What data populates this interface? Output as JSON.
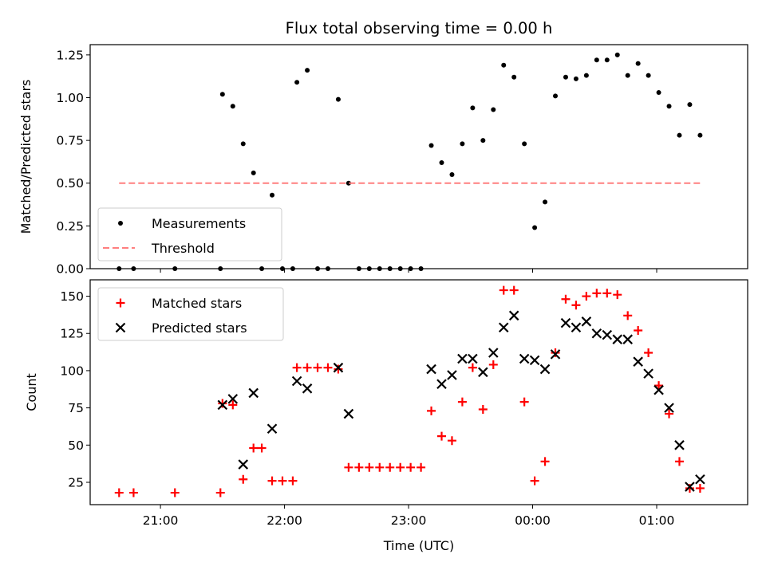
{
  "chart_data": [
    {
      "type": "scatter",
      "title": "Flux total observing time = 0.00 h",
      "ylabel": "Matched/Predicted stars",
      "xlabel": "",
      "xlim": [
        "20:26",
        "01:44"
      ],
      "ylim": [
        0,
        1.31
      ],
      "yticks": [
        0,
        0.25,
        0.5,
        0.75,
        1.0,
        1.25
      ],
      "ytick_labels": [
        "0.00",
        "0.25",
        "0.50",
        "0.75",
        "1.00",
        "1.25"
      ],
      "xticks": [
        "21:00",
        "22:00",
        "23:00",
        "00:00",
        "01:00"
      ],
      "legend": "lower-left",
      "series": [
        {
          "name": "Measurements",
          "marker": "dot",
          "color": "#000000",
          "points": [
            [
              "20:40",
              0.0
            ],
            [
              "20:47",
              0.0
            ],
            [
              "21:07",
              0.0
            ],
            [
              "21:29",
              0.0
            ],
            [
              "21:30",
              1.02
            ],
            [
              "21:35",
              0.95
            ],
            [
              "21:40",
              0.73
            ],
            [
              "21:45",
              0.56
            ],
            [
              "21:49",
              0.0
            ],
            [
              "21:54",
              0.43
            ],
            [
              "21:59",
              0.0
            ],
            [
              "22:04",
              0.0
            ],
            [
              "22:06",
              1.09
            ],
            [
              "22:11",
              1.16
            ],
            [
              "22:16",
              0.0
            ],
            [
              "22:21",
              0.0
            ],
            [
              "22:26",
              0.99
            ],
            [
              "22:31",
              0.5
            ],
            [
              "22:36",
              0.0
            ],
            [
              "22:41",
              0.0
            ],
            [
              "22:46",
              0.0
            ],
            [
              "22:51",
              0.0
            ],
            [
              "22:56",
              0.0
            ],
            [
              "23:01",
              0.0
            ],
            [
              "23:06",
              0.0
            ],
            [
              "23:11",
              0.72
            ],
            [
              "23:16",
              0.62
            ],
            [
              "23:21",
              0.55
            ],
            [
              "23:26",
              0.73
            ],
            [
              "23:31",
              0.94
            ],
            [
              "23:36",
              0.75
            ],
            [
              "23:41",
              0.93
            ],
            [
              "23:46",
              1.19
            ],
            [
              "23:51",
              1.12
            ],
            [
              "23:56",
              0.73
            ],
            [
              "00:01",
              0.24
            ],
            [
              "00:06",
              0.39
            ],
            [
              "00:11",
              1.01
            ],
            [
              "00:16",
              1.12
            ],
            [
              "00:21",
              1.11
            ],
            [
              "00:26",
              1.13
            ],
            [
              "00:31",
              1.22
            ],
            [
              "00:36",
              1.22
            ],
            [
              "00:41",
              1.25
            ],
            [
              "00:46",
              1.13
            ],
            [
              "00:51",
              1.2
            ],
            [
              "00:56",
              1.13
            ],
            [
              "01:01",
              1.03
            ],
            [
              "01:06",
              0.95
            ],
            [
              "01:11",
              0.78
            ],
            [
              "01:16",
              0.96
            ],
            [
              "01:21",
              0.78
            ]
          ]
        },
        {
          "name": "Threshold",
          "marker": "dashed-line",
          "color": "#ff7f7f",
          "points": [
            [
              "20:40",
              0.5
            ],
            [
              "01:21",
              0.5
            ]
          ]
        }
      ]
    },
    {
      "type": "scatter",
      "title": "",
      "ylabel": "Count",
      "xlabel": "Time (UTC)",
      "xlim": [
        "20:26",
        "01:44"
      ],
      "ylim": [
        10,
        161
      ],
      "yticks": [
        25,
        50,
        75,
        100,
        125,
        150
      ],
      "ytick_labels": [
        "25",
        "50",
        "75",
        "100",
        "125",
        "150"
      ],
      "xticks": [
        "21:00",
        "22:00",
        "23:00",
        "00:00",
        "01:00"
      ],
      "legend": "top-left",
      "series": [
        {
          "name": "Matched stars",
          "marker": "plus",
          "color": "#ff0000",
          "points": [
            [
              "20:40",
              18
            ],
            [
              "20:47",
              18
            ],
            [
              "21:07",
              18
            ],
            [
              "21:29",
              18
            ],
            [
              "21:30",
              78
            ],
            [
              "21:35",
              77
            ],
            [
              "21:40",
              27
            ],
            [
              "21:45",
              48
            ],
            [
              "21:49",
              48
            ],
            [
              "21:54",
              26
            ],
            [
              "21:59",
              26
            ],
            [
              "22:04",
              26
            ],
            [
              "22:06",
              102
            ],
            [
              "22:11",
              102
            ],
            [
              "22:16",
              102
            ],
            [
              "22:21",
              102
            ],
            [
              "22:26",
              101
            ],
            [
              "22:31",
              35
            ],
            [
              "22:36",
              35
            ],
            [
              "22:41",
              35
            ],
            [
              "22:46",
              35
            ],
            [
              "22:51",
              35
            ],
            [
              "22:56",
              35
            ],
            [
              "23:01",
              35
            ],
            [
              "23:06",
              35
            ],
            [
              "23:11",
              73
            ],
            [
              "23:16",
              56
            ],
            [
              "23:21",
              53
            ],
            [
              "23:26",
              79
            ],
            [
              "23:31",
              102
            ],
            [
              "23:36",
              74
            ],
            [
              "23:41",
              104
            ],
            [
              "23:46",
              154
            ],
            [
              "23:51",
              154
            ],
            [
              "23:56",
              79
            ],
            [
              "00:01",
              26
            ],
            [
              "00:06",
              39
            ],
            [
              "00:11",
              112
            ],
            [
              "00:16",
              148
            ],
            [
              "00:21",
              144
            ],
            [
              "00:26",
              150
            ],
            [
              "00:31",
              152
            ],
            [
              "00:36",
              152
            ],
            [
              "00:41",
              151
            ],
            [
              "00:46",
              137
            ],
            [
              "00:51",
              127
            ],
            [
              "00:56",
              112
            ],
            [
              "01:01",
              90
            ],
            [
              "01:06",
              71
            ],
            [
              "01:11",
              39
            ],
            [
              "01:16",
              21
            ],
            [
              "01:21",
              21
            ]
          ]
        },
        {
          "name": "Predicted stars",
          "marker": "x",
          "color": "#000000",
          "points": [
            [
              "21:30",
              77
            ],
            [
              "21:35",
              81
            ],
            [
              "21:40",
              37
            ],
            [
              "21:45",
              85
            ],
            [
              "21:54",
              61
            ],
            [
              "22:06",
              93
            ],
            [
              "22:11",
              88
            ],
            [
              "22:26",
              102
            ],
            [
              "22:31",
              71
            ],
            [
              "23:11",
              101
            ],
            [
              "23:16",
              91
            ],
            [
              "23:21",
              97
            ],
            [
              "23:26",
              108
            ],
            [
              "23:31",
              108
            ],
            [
              "23:36",
              99
            ],
            [
              "23:41",
              112
            ],
            [
              "23:46",
              129
            ],
            [
              "23:51",
              137
            ],
            [
              "23:56",
              108
            ],
            [
              "00:01",
              107
            ],
            [
              "00:06",
              101
            ],
            [
              "00:11",
              111
            ],
            [
              "00:16",
              132
            ],
            [
              "00:21",
              129
            ],
            [
              "00:26",
              133
            ],
            [
              "00:31",
              125
            ],
            [
              "00:36",
              124
            ],
            [
              "00:41",
              121
            ],
            [
              "00:46",
              121
            ],
            [
              "00:51",
              106
            ],
            [
              "00:56",
              98
            ],
            [
              "01:01",
              87
            ],
            [
              "01:06",
              75
            ],
            [
              "01:11",
              50
            ],
            [
              "01:16",
              22
            ],
            [
              "01:21",
              27
            ]
          ]
        }
      ]
    }
  ]
}
